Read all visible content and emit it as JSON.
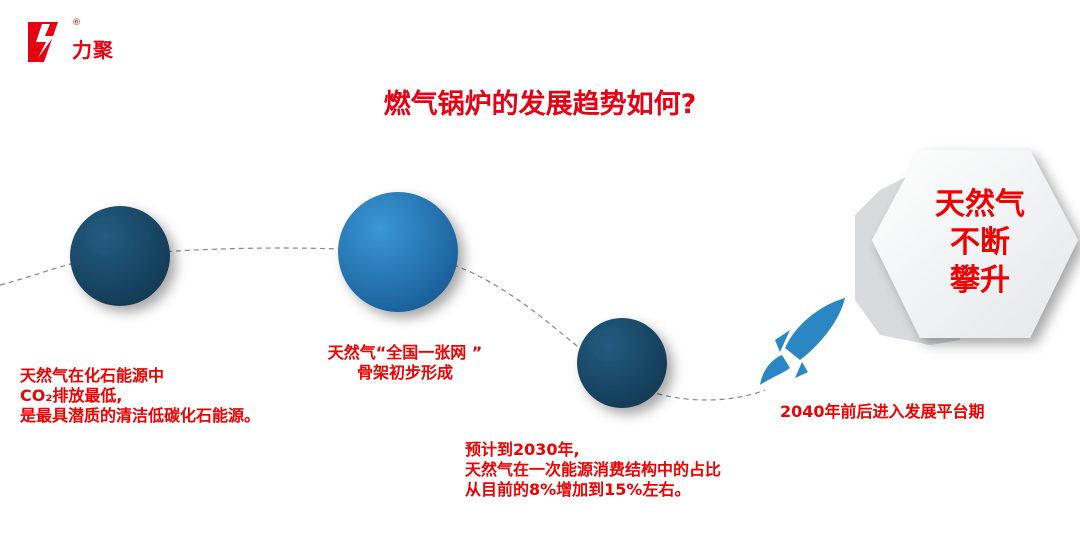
{
  "brand": {
    "name": "力聚",
    "registered_mark": "®",
    "color": "#e60012"
  },
  "title": "燃气锅炉的发展趋势如何?",
  "colors": {
    "accent_red": "#f00000",
    "circle_dark": "#1d4e6e",
    "circle_blue": "#2a7ec0",
    "rocket": "#2a87c4"
  },
  "milestones": [
    {
      "lines": [
        "天然气在化石能源中",
        "CO₂排放最低,",
        "是最具潜质的清洁低碳化石能源。"
      ]
    },
    {
      "lines": [
        "天然气“全国一张网 ”",
        "骨架初步形成"
      ]
    },
    {
      "lines": [
        "预计到2030年,",
        "天然气在一次能源消费结构中的占比",
        "从目前的8%增加到15%左右。"
      ]
    },
    {
      "lines": [
        "2040年前后进入发展平台期"
      ]
    }
  ],
  "hexagon": {
    "lines": [
      "天然气",
      "不断",
      "攀升"
    ]
  },
  "icons": {
    "logo": "lightning-logo-icon",
    "rocket": "rocket-icon"
  }
}
